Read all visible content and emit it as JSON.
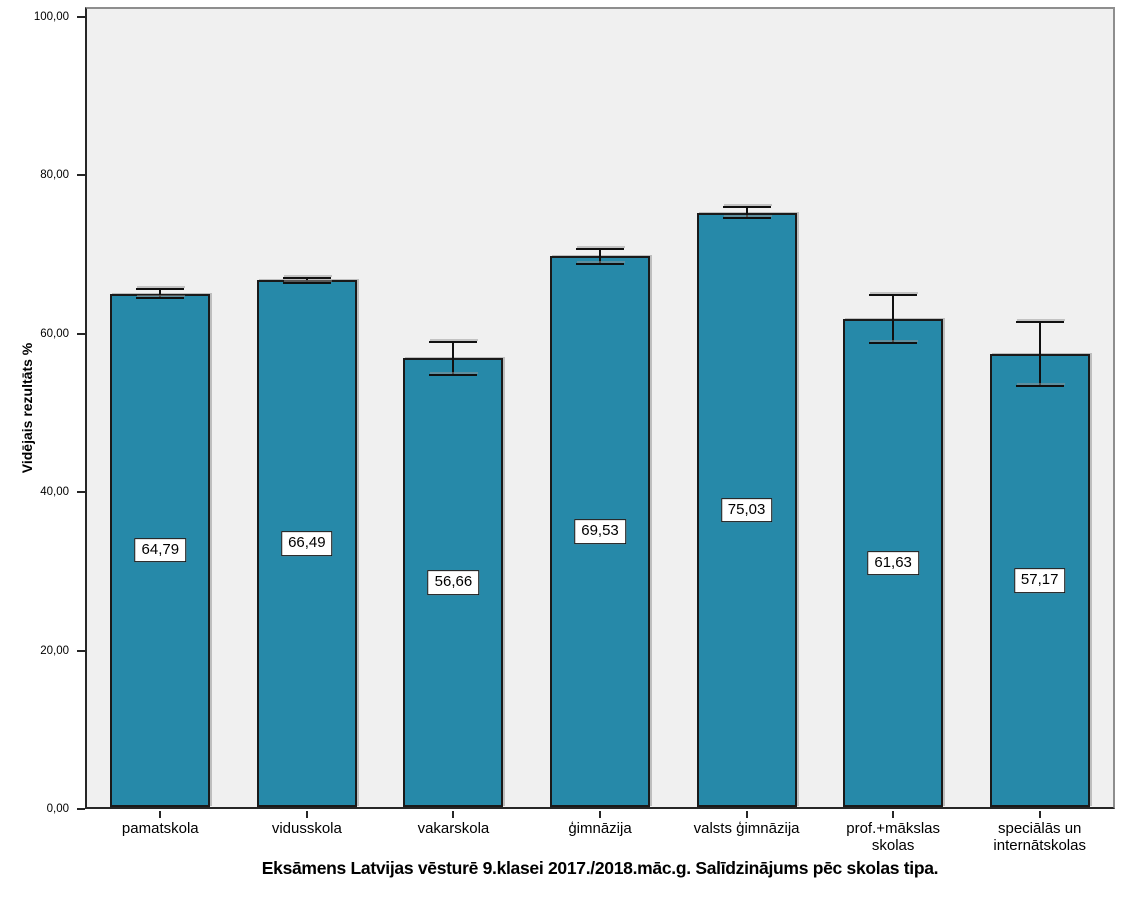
{
  "chart_data": {
    "type": "bar",
    "title": "Eksāmens Latvijas vēsturē 9.klasei 2017./2018.māc.g. Salīdzinājums pēc skolas tipa.",
    "xlabel": "",
    "ylabel": "Vidējais rezultāts %",
    "ylim": [
      0,
      100
    ],
    "grid": false,
    "legend": "none",
    "plot_background": "#f0f0f0",
    "bar_color": "#2689A9",
    "bar_border_color": "#1a1a1a",
    "yticks": [
      {
        "value": 0,
        "label": "0,00"
      },
      {
        "value": 20,
        "label": "20,00"
      },
      {
        "value": 40,
        "label": "40,00"
      },
      {
        "value": 60,
        "label": "60,00"
      },
      {
        "value": 80,
        "label": "80,00"
      },
      {
        "value": 100,
        "label": "100,00"
      }
    ],
    "categories": [
      "pamatskola",
      "vidusskola",
      "vakarskola",
      "ģimnāzija",
      "valsts ģimnāzija",
      "prof.+mākslas\nskolas",
      "speciālās un\ninternātskolas"
    ],
    "values": [
      64.79,
      66.49,
      56.66,
      69.53,
      75.03,
      61.63,
      57.17
    ],
    "value_labels": [
      "64,79",
      "66,49",
      "56,66",
      "69,53",
      "75,03",
      "61,63",
      "57,17"
    ],
    "error_bars": [
      0.7,
      0.4,
      2.2,
      1.1,
      0.8,
      3.2,
      4.2
    ]
  }
}
